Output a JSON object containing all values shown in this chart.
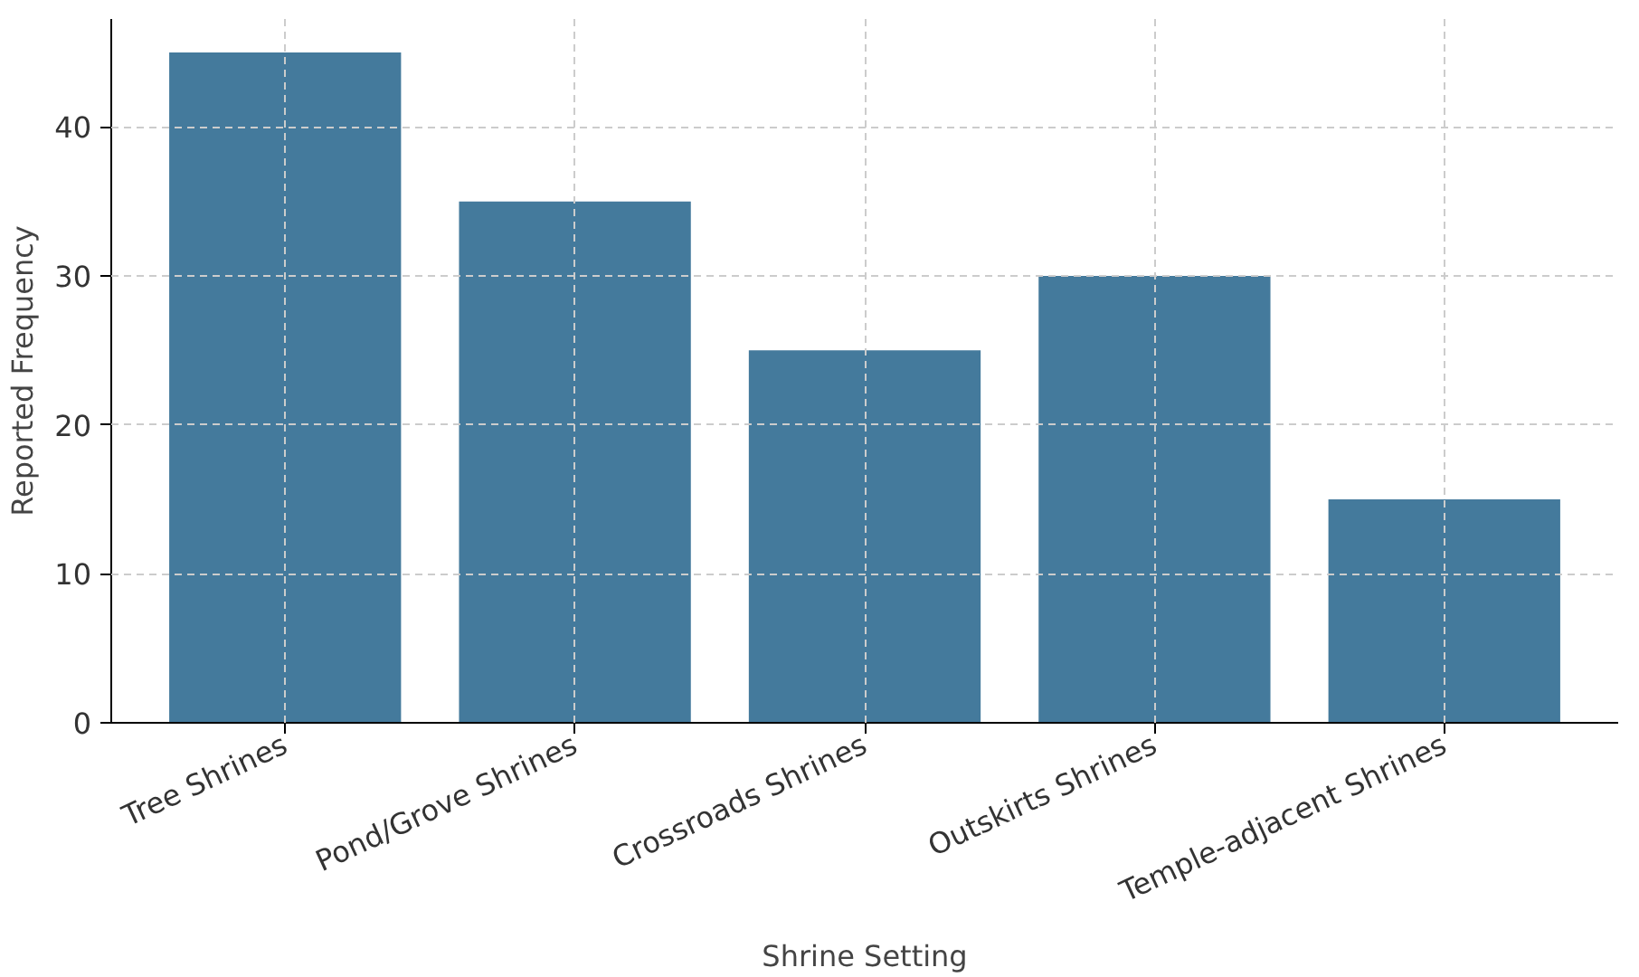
{
  "chart_data": {
    "type": "bar",
    "xlabel": "Shrine Setting",
    "ylabel": "Reported Frequency",
    "categories": [
      "Tree Shrines",
      "Pond/Grove Shrines",
      "Crossroads Shrines",
      "Outskirts Shrines",
      "Temple-adjacent Shrines"
    ],
    "values": [
      45,
      35,
      25,
      30,
      15
    ],
    "color": "#447a9c",
    "ylim": [
      0,
      47.25
    ],
    "yticks": [
      0,
      10,
      20,
      30,
      40
    ],
    "grid": true
  }
}
